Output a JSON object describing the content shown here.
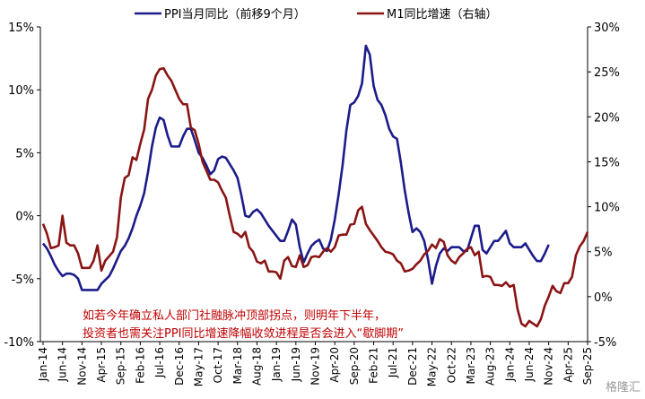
{
  "chart_data": {
    "type": "line",
    "annotations": [
      "如若今年确立私人部门社融脉冲顶部拐点，则明年下半年，",
      "投资者也需关注PPI同比增速降幅收敛进程是否会进入“歇脚期”"
    ],
    "watermark": "格隆汇",
    "categories": [
      "Jan-14",
      null,
      null,
      null,
      null,
      "Jun-14",
      null,
      null,
      null,
      null,
      "Nov-14",
      null,
      null,
      null,
      null,
      "Apr-15",
      null,
      null,
      null,
      null,
      "Sep-15",
      null,
      null,
      null,
      null,
      "Feb-16",
      null,
      null,
      null,
      null,
      "Jul-16",
      null,
      null,
      null,
      null,
      "Dec-16",
      null,
      null,
      null,
      null,
      "May-17",
      null,
      null,
      null,
      null,
      "Oct-17",
      null,
      null,
      null,
      null,
      "Mar-18",
      null,
      null,
      null,
      null,
      "Aug-18",
      null,
      null,
      null,
      null,
      "Jan-19",
      null,
      null,
      null,
      null,
      "Jun-19",
      null,
      null,
      null,
      null,
      "Nov-19",
      null,
      null,
      null,
      null,
      "Apr-20",
      null,
      null,
      null,
      null,
      "Sep-20",
      null,
      null,
      null,
      null,
      "Feb-21",
      null,
      null,
      null,
      null,
      "Jul-21",
      null,
      null,
      null,
      null,
      "Dec-21",
      null,
      null,
      null,
      null,
      "May-22",
      null,
      null,
      null,
      null,
      "Oct-22",
      null,
      null,
      null,
      null,
      "Mar-23",
      null,
      null,
      null,
      null,
      "Aug-23",
      null,
      null,
      null,
      null,
      "Jan-24",
      null,
      null,
      null,
      null,
      "Jun-24",
      null,
      null,
      null,
      null,
      "Nov-24",
      null,
      null,
      null,
      null,
      "Apr-25",
      null,
      null,
      null,
      null,
      "Sep-25"
    ],
    "series": [
      {
        "name": "PPI当月同比（前移9个月）",
        "color": "#1c1c8a",
        "values": [
          -2.2,
          -2.6,
          -3.2,
          -3.9,
          -4.4,
          -4.8,
          -4.6,
          -4.6,
          -4.7,
          -5.0,
          -5.9,
          -5.9,
          -5.9,
          -5.9,
          -5.9,
          -5.4,
          -5.1,
          -4.8,
          -4.2,
          -3.5,
          -2.8,
          -2.4,
          -1.8,
          -1.0,
          0.0,
          0.8,
          1.8,
          3.5,
          5.5,
          7.0,
          7.8,
          7.6,
          6.4,
          5.5,
          5.5,
          5.5,
          6.3,
          6.9,
          6.9,
          6.0,
          5.0,
          4.6,
          4.0,
          3.3,
          3.6,
          4.5,
          4.7,
          4.6,
          4.1,
          3.6,
          3.0,
          1.6,
          0.0,
          -0.1,
          0.3,
          0.5,
          0.2,
          -0.3,
          -0.8,
          -1.2,
          -1.6,
          -2.0,
          -2.0,
          -1.2,
          -0.3,
          -0.7,
          -2.5,
          -3.7,
          -3.0,
          -2.4,
          -2.1,
          -1.9,
          -2.6,
          -2.8,
          -1.9,
          -0.3,
          1.7,
          4.0,
          6.8,
          8.8,
          9.0,
          9.5,
          10.5,
          13.5,
          12.8,
          10.3,
          9.2,
          8.8,
          8.0,
          6.9,
          6.3,
          6.1,
          4.2,
          2.0,
          0.2,
          -1.3,
          -1.0,
          -1.3,
          -2.0,
          -3.5,
          -5.4,
          -4.0,
          -3.0,
          -2.6,
          -2.8,
          -2.5,
          -2.5,
          -2.5,
          -2.8,
          -2.8,
          -1.8,
          -0.8,
          -0.8,
          -2.7,
          -3.0,
          -2.5,
          -2.0,
          -2.0,
          -1.6,
          -1.2,
          -2.2,
          -2.5,
          -2.5,
          -2.5,
          -2.2,
          -2.7,
          -3.2,
          -3.6,
          -3.6,
          -3.0,
          -2.3,
          null,
          null,
          null,
          null,
          null,
          null,
          null,
          null,
          null,
          null
        ]
      },
      {
        "name": "M1同比增速（右轴）",
        "color": "#8b1414",
        "axis": "y2",
        "values": [
          8.1,
          7.0,
          5.4,
          5.5,
          5.7,
          9.0,
          6.0,
          5.7,
          5.7,
          4.8,
          3.2,
          3.2,
          3.2,
          4.0,
          5.7,
          2.9,
          4.0,
          4.5,
          5.0,
          6.6,
          11.0,
          13.2,
          13.5,
          15.5,
          15.2,
          17.0,
          18.6,
          22.0,
          23.0,
          24.6,
          25.3,
          25.4,
          24.6,
          24.0,
          23.0,
          22.0,
          21.4,
          21.4,
          18.8,
          18.5,
          17.0,
          15.0,
          14.0,
          13.0,
          13.0,
          12.7,
          11.8,
          11.0,
          9.0,
          7.2,
          7.0,
          6.6,
          7.2,
          5.5,
          5.0,
          3.9,
          3.7,
          4.0,
          2.8,
          2.8,
          2.7,
          2.0,
          4.0,
          4.4,
          3.4,
          3.3,
          4.6,
          3.3,
          3.5,
          4.4,
          4.5,
          4.4,
          5.0,
          5.4,
          5.0,
          5.5,
          6.8,
          6.9,
          6.9,
          8.0,
          8.1,
          9.6,
          10.0,
          8.1,
          7.4,
          6.8,
          6.2,
          5.5,
          5.0,
          4.9,
          4.7,
          4.0,
          3.7,
          2.8,
          2.9,
          3.1,
          3.6,
          4.0,
          4.7,
          5.1,
          5.8,
          5.4,
          6.4,
          6.1,
          4.6,
          4.0,
          3.7,
          4.4,
          4.8,
          5.3,
          5.5,
          4.6,
          5.0,
          2.2,
          2.3,
          2.2,
          1.3,
          1.3,
          1.2,
          1.6,
          1.1,
          1.3,
          -1.4,
          -3.0,
          -3.3,
          -2.7,
          -3.0,
          -3.3,
          -2.5,
          -1.0,
          0.0,
          1.2,
          0.6,
          0.4,
          1.5,
          1.5,
          2.2,
          4.6,
          5.6,
          6.2,
          7.2
        ]
      }
    ],
    "ylim": [
      -10,
      15
    ],
    "yticks": [
      {
        "value": -10,
        "label": "-10%"
      },
      {
        "value": -5,
        "label": "-5%"
      },
      {
        "value": 0,
        "label": "0%"
      },
      {
        "value": 5,
        "label": "5%"
      },
      {
        "value": 10,
        "label": "10%"
      },
      {
        "value": 15,
        "label": "15%"
      }
    ],
    "y2lim": [
      -5,
      30
    ],
    "y2ticks": [
      {
        "value": -5,
        "label": "-5%"
      },
      {
        "value": 0,
        "label": "0%"
      },
      {
        "value": 5,
        "label": "5%"
      },
      {
        "value": 10,
        "label": "10%"
      },
      {
        "value": 15,
        "label": "15%"
      },
      {
        "value": 20,
        "label": "20%"
      },
      {
        "value": 25,
        "label": "25%"
      },
      {
        "value": 30,
        "label": "30%"
      }
    ]
  }
}
